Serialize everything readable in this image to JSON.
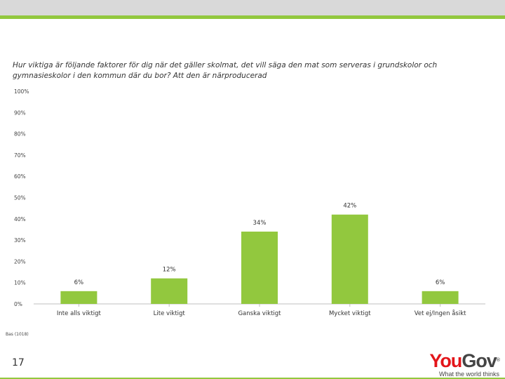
{
  "slide": {
    "question": "Hur viktiga är följande faktorer för dig när det gäller skolmat, det vill säga den mat som serveras i grundskolor och gymnasieskolor i den kommun där du bor? Att den är närproducerad",
    "base": "Bas (1018)",
    "page_number": "17"
  },
  "logo": {
    "brand_you": "You",
    "brand_gov": "Gov",
    "registered": "®",
    "tagline": "What the world thinks"
  },
  "colors": {
    "bar": "#92c83e",
    "accent": "#92c83e"
  },
  "chart_data": {
    "type": "bar",
    "title": "",
    "xlabel": "",
    "ylabel": "",
    "categories": [
      "Inte alls viktigt",
      "Lite viktigt",
      "Ganska viktigt",
      "Mycket viktigt",
      "Vet ej/Ingen åsikt"
    ],
    "values": [
      6,
      12,
      34,
      42,
      6
    ],
    "value_labels": [
      "6%",
      "12%",
      "34%",
      "42%",
      "6%"
    ],
    "ylim": [
      0,
      100
    ],
    "yticks": [
      0,
      10,
      20,
      30,
      40,
      50,
      60,
      70,
      80,
      90,
      100
    ],
    "ytick_labels": [
      "0%",
      "10%",
      "20%",
      "30%",
      "40%",
      "50%",
      "60%",
      "70%",
      "80%",
      "90%",
      "100%"
    ],
    "grid": false
  }
}
